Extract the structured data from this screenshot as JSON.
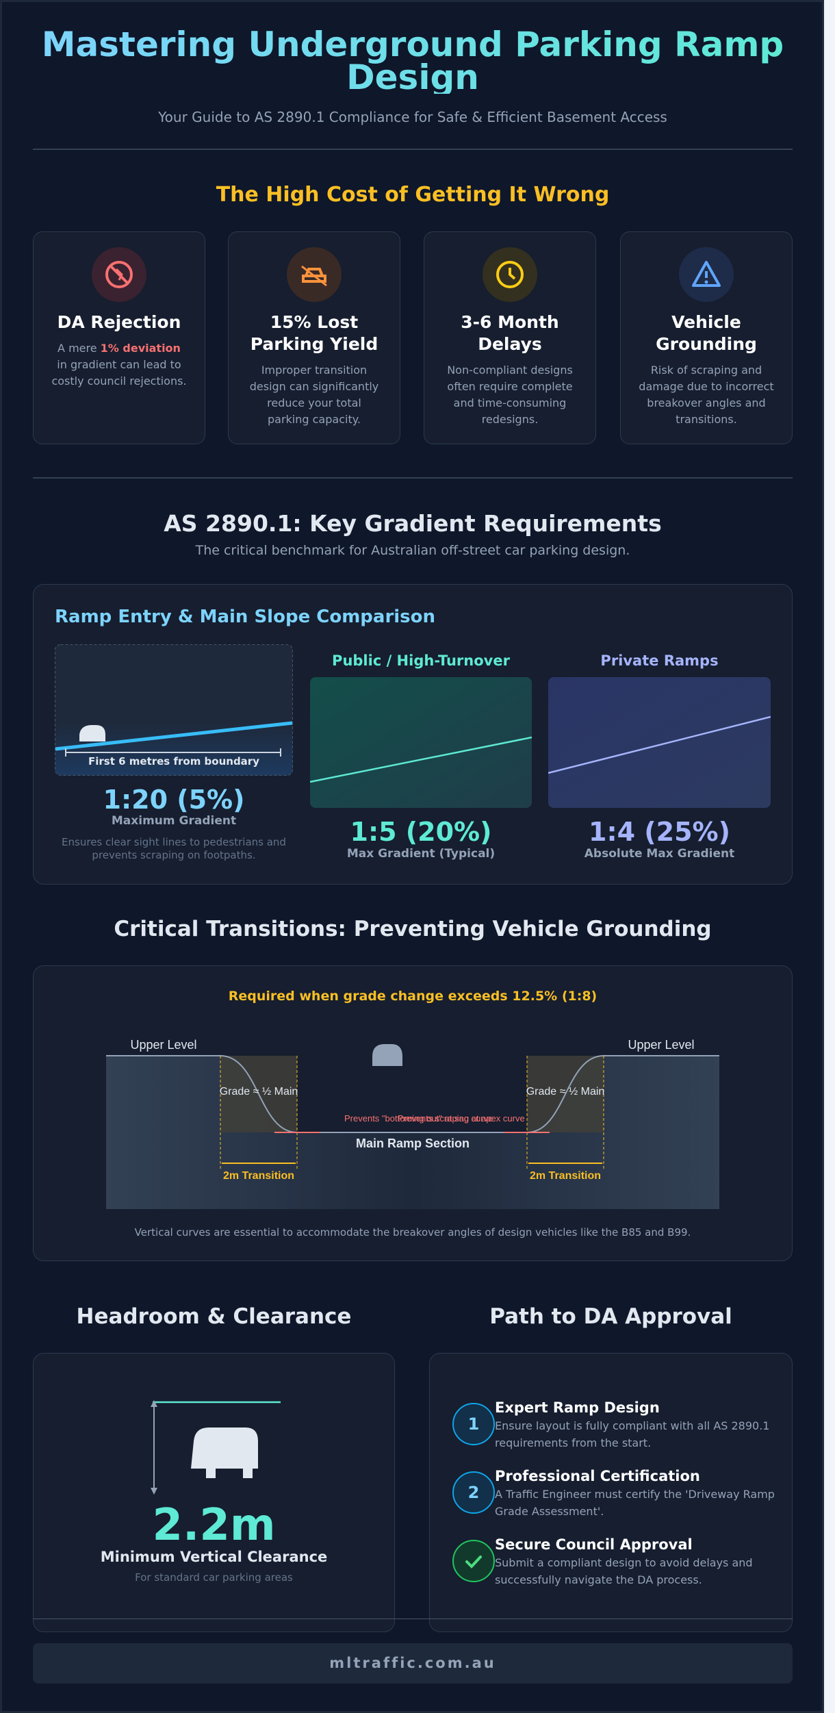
{
  "header": {
    "title": "Mastering Underground Parking Ramp Design",
    "subtitle": "Your Guide to AS 2890.1 Compliance for Safe & Efficient Basement Access"
  },
  "cost_section": {
    "title": "The High Cost of Getting It Wrong",
    "cards": [
      {
        "title": "DA Rejection",
        "text_before": "A mere",
        "highlight": "1% deviation",
        "text_after": "in gradient can lead to costly council rejections."
      },
      {
        "title": "15% Lost Parking Yield",
        "text": "Improper transition design can significantly reduce your total parking capacity."
      },
      {
        "title": "3-6 Month Delays",
        "text": "Non-compliant designs often require complete and time-consuming redesigns."
      },
      {
        "title": "Vehicle Grounding",
        "text": "Risk of scraping and damage due to incorrect breakover angles and transitions."
      }
    ]
  },
  "gradients": {
    "title": "AS 2890.1: Key Gradient Requirements",
    "subtitle": "The critical benchmark for Australian off-street car parking design.",
    "panel_title": "Ramp Entry & Main Slope Comparison",
    "entry": {
      "caption": "First 6 metres from boundary",
      "value": "1:20 (5%)",
      "label": "Maximum Gradient",
      "note": "Ensures clear sight lines to pedestrians and prevents scraping on footpaths."
    },
    "public": {
      "title": "Public / High-Turnover",
      "value": "1:5 (20%)",
      "label": "Max Gradient (Typical)"
    },
    "private": {
      "title": "Private Ramps",
      "value": "1:4 (25%)",
      "label": "Absolute Max Gradient"
    }
  },
  "transitions": {
    "title": "Critical Transitions: Preventing Vehicle Grounding",
    "requirement": "Required when grade change exceeds 12.5% (1:8)",
    "upper_left": "Upper Level",
    "upper_right": "Upper Level",
    "grade_left": "Grade ≈ ½ Main",
    "grade_right": "Grade ≈ ½ Main",
    "sag_note": "Prevents \"bottoming out\" at sag curve",
    "apex_note": "Prevents scraping at apex curve",
    "main_ramp": "Main Ramp Section",
    "transition_left": "2m Transition",
    "transition_right": "2m Transition",
    "caption": "Vertical curves are essential to accommodate the breakover angles of design vehicles like the B85 and B99."
  },
  "headroom": {
    "title": "Headroom & Clearance",
    "value": "2.2m",
    "label": "Minimum Vertical Clearance",
    "note": "For standard car parking areas"
  },
  "approval": {
    "title": "Path to DA Approval",
    "steps": [
      {
        "number": "1",
        "title": "Expert Ramp Design",
        "text": "Ensure layout is fully compliant with all AS 2890.1 requirements from the start."
      },
      {
        "number": "2",
        "title": "Professional Certification",
        "text": "A Traffic Engineer must certify the 'Driveway Ramp Grade Assessment'."
      },
      {
        "title": "Secure Council Approval",
        "text": "Submit a compliant design to avoid delays and successfully navigate the DA process."
      }
    ]
  },
  "footer": {
    "site": "mltraffic.com.au"
  }
}
